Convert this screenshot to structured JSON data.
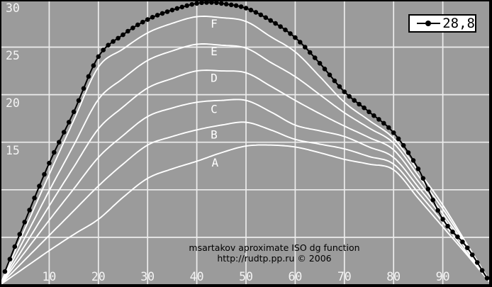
{
  "chart": {
    "background_color": "#9b9b9b",
    "grid_color": "#ededed",
    "border_color": "#000000",
    "curve_color": "#ffffff",
    "series_color": "#000000",
    "tick_label_color": "#f4f4f4"
  },
  "chart_data": {
    "type": "line",
    "title": "",
    "xlabel": "",
    "ylabel": "",
    "xlim": [
      0,
      100
    ],
    "ylim": [
      0,
      30.2
    ],
    "grid": true,
    "x_ticks": [
      10,
      20,
      30,
      40,
      50,
      60,
      70,
      80,
      90
    ],
    "y_ticks_labeled": [
      30,
      25,
      20,
      15
    ],
    "y_grid_values": [
      5,
      10,
      15,
      20,
      25
    ],
    "legend": {
      "label": "28,8",
      "position": "top-right",
      "marker": "line-with-dot"
    },
    "footnote_line1": "msartakov aproximate ISO dg function",
    "footnote_line2": "http://rudtp.pp.ru © 2006",
    "curve_labels": [
      {
        "text": "F",
        "x": 43.5,
        "y": 27.5
      },
      {
        "text": "E",
        "x": 43.5,
        "y": 24.6
      },
      {
        "text": "D",
        "x": 43.5,
        "y": 21.8
      },
      {
        "text": "C",
        "x": 43.5,
        "y": 18.5
      },
      {
        "text": "B",
        "x": 43.5,
        "y": 15.85
      },
      {
        "text": "A",
        "x": 43.7,
        "y": 12.9
      }
    ],
    "series": [
      {
        "name": "28,8",
        "style": "line+dots",
        "color": "#000000",
        "x": [
          1,
          5,
          10,
          15,
          20,
          25,
          30,
          35,
          40,
          43,
          45,
          50,
          55,
          60,
          65,
          70,
          75,
          80,
          85,
          90,
          95,
          99
        ],
        "y": [
          1.4,
          6.6,
          12.8,
          18.2,
          24.0,
          26.3,
          27.9,
          28.9,
          29.6,
          29.7,
          29.6,
          29.1,
          27.8,
          26.0,
          23.3,
          20.3,
          18.2,
          16.0,
          12.2,
          6.9,
          3.9,
          0.7
        ]
      },
      {
        "name": "F",
        "style": "line",
        "color": "#ffffff",
        "x": [
          0,
          5,
          10,
          15,
          20,
          25,
          30,
          35,
          40,
          45,
          50,
          55,
          60,
          65,
          70,
          75,
          80,
          85,
          90,
          95,
          100
        ],
        "y": [
          0,
          5.8,
          11.6,
          17.3,
          22.9,
          24.8,
          26.5,
          27.5,
          28.2,
          28.1,
          27.7,
          26.1,
          24.5,
          21.9,
          19.2,
          17.3,
          15.4,
          12.0,
          8.4,
          4.2,
          0
        ]
      },
      {
        "name": "E",
        "style": "line",
        "color": "#ffffff",
        "x": [
          0,
          5,
          10,
          15,
          20,
          25,
          30,
          35,
          40,
          45,
          50,
          55,
          60,
          65,
          70,
          75,
          80,
          85,
          90,
          95,
          100
        ],
        "y": [
          0,
          4.9,
          9.9,
          14.7,
          19.5,
          21.7,
          23.6,
          24.6,
          25.3,
          25.2,
          24.9,
          23.4,
          21.9,
          20.0,
          18.1,
          16.5,
          14.9,
          11.5,
          8.0,
          4.0,
          0
        ]
      },
      {
        "name": "D",
        "style": "line",
        "color": "#ffffff",
        "x": [
          0,
          5,
          10,
          15,
          20,
          25,
          30,
          35,
          40,
          45,
          50,
          55,
          60,
          65,
          70,
          75,
          80,
          85,
          90,
          95,
          100
        ],
        "y": [
          0,
          4.1,
          8.3,
          12.4,
          16.4,
          18.7,
          20.7,
          21.7,
          22.5,
          22.5,
          22.3,
          20.9,
          19.4,
          18.0,
          16.7,
          15.5,
          14.2,
          10.9,
          7.5,
          3.8,
          0
        ]
      },
      {
        "name": "C",
        "style": "line",
        "color": "#ffffff",
        "x": [
          0,
          5,
          10,
          15,
          20,
          25,
          30,
          35,
          40,
          45,
          50,
          55,
          60,
          65,
          70,
          75,
          80,
          85,
          90,
          95,
          100
        ],
        "y": [
          0,
          3.4,
          6.8,
          10.1,
          13.4,
          15.7,
          17.7,
          18.6,
          19.2,
          19.4,
          19.4,
          18.2,
          16.8,
          16.2,
          15.6,
          14.5,
          13.4,
          10.3,
          7.1,
          3.6,
          0
        ]
      },
      {
        "name": "B",
        "style": "line",
        "color": "#ffffff",
        "x": [
          0,
          5,
          10,
          15,
          20,
          25,
          30,
          35,
          40,
          45,
          50,
          55,
          60,
          65,
          70,
          75,
          80,
          85,
          90,
          95,
          100
        ],
        "y": [
          0,
          2.6,
          5.2,
          7.8,
          10.4,
          12.7,
          14.7,
          15.6,
          16.3,
          16.8,
          17.1,
          16.3,
          15.3,
          14.8,
          14.3,
          13.5,
          12.7,
          9.7,
          6.6,
          3.3,
          0
        ]
      },
      {
        "name": "A",
        "style": "line",
        "color": "#ffffff",
        "x": [
          0,
          5,
          10,
          15,
          20,
          25,
          30,
          35,
          40,
          45,
          50,
          55,
          60,
          65,
          70,
          75,
          80,
          85,
          90,
          95,
          100
        ],
        "y": [
          0,
          1.8,
          3.6,
          5.3,
          6.9,
          9.2,
          11.2,
          12.2,
          13.0,
          13.9,
          14.6,
          14.7,
          14.5,
          13.9,
          13.2,
          12.7,
          12.1,
          9.1,
          6.1,
          3.1,
          0
        ]
      }
    ]
  }
}
